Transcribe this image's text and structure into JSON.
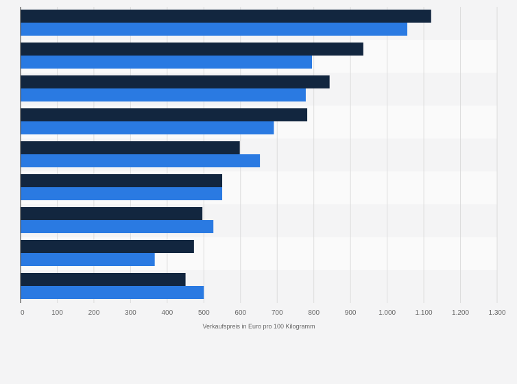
{
  "chart_data": {
    "type": "bar",
    "orientation": "horizontal",
    "categories": [
      "",
      "",
      "",
      "",
      "",
      "",
      "",
      "",
      ""
    ],
    "series": [
      {
        "color": "#12263f",
        "values": [
          1120,
          935,
          843,
          782,
          598,
          550,
          496,
          473,
          450
        ]
      },
      {
        "color": "#2a7ae2",
        "values": [
          1055,
          795,
          778,
          691,
          653,
          550,
          526,
          366,
          500
        ]
      }
    ],
    "xlabel": "Verkaufspreis in Euro pro 100 Kilogramm",
    "ylabel": "",
    "xlim": [
      0,
      1300
    ],
    "xticks": [
      0,
      100,
      200,
      300,
      400,
      500,
      600,
      700,
      800,
      900,
      1000,
      1100,
      1200,
      1300
    ],
    "xtick_labels": [
      "0",
      "100",
      "200",
      "300",
      "400",
      "500",
      "600",
      "700",
      "800",
      "900",
      "1.000",
      "1.100",
      "1.200",
      "1.300"
    ],
    "grid": true,
    "legend": "none"
  }
}
